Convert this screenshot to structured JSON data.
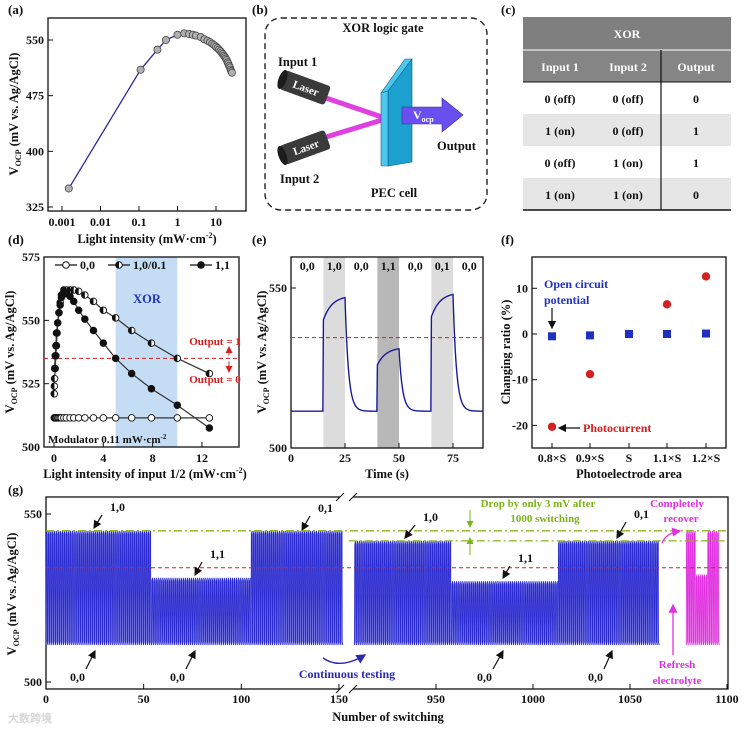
{
  "panels": {
    "a": "(a)",
    "b": "(b)",
    "c": "(c)",
    "d": "(d)",
    "e": "(e)",
    "f": "(f)",
    "g": "(g)"
  },
  "ylabel_vocp": {
    "main": "V",
    "sub": "OCP",
    "rest": " (mV vs. Ag/AgCl)"
  },
  "diagram": {
    "title": "XOR logic gate",
    "input1": "Input 1",
    "input2": "Input 2",
    "laser": "Laser",
    "output": "Output",
    "vocp_main": "V",
    "vocp_sub": "ocp",
    "cell": "PEC cell",
    "colors": {
      "beam": "#e040e0",
      "plate": "#1ba0d0",
      "plate_light": "#4cc8ee",
      "arrow": "#6a4ff0",
      "laser": "#3a3a3a"
    }
  },
  "truth_table": {
    "title": "XOR",
    "headers": [
      "Input 1",
      "Input 2",
      "Output"
    ],
    "rows": [
      [
        "0 (off)",
        "0 (off)",
        "0"
      ],
      [
        "1 (on)",
        "0 (off)",
        "1"
      ],
      [
        "0 (off)",
        "1 (on)",
        "1"
      ],
      [
        "1 (on)",
        "1 (on)",
        "0"
      ]
    ]
  },
  "chart_data": [
    {
      "id": "a",
      "type": "line",
      "xlabel": "Light intensity (mW·cm",
      "xlabel_sup": "-2",
      "xlabel_end": ")",
      "xscale": "log",
      "xlim": [
        0.001,
        30
      ],
      "ylim": [
        322,
        570
      ],
      "xticks": [
        "0.001",
        "0.01",
        "0.1",
        "1",
        "10"
      ],
      "yticks": [
        "325",
        "400",
        "475",
        "550"
      ],
      "x": [
        0.0015,
        0.11,
        0.3,
        0.5,
        1,
        1.5,
        2,
        2.5,
        3,
        4,
        5,
        6,
        7,
        8,
        9,
        10,
        11,
        12,
        13,
        14,
        15,
        16,
        17,
        18,
        19,
        20,
        21,
        22,
        23,
        24,
        25,
        26
      ],
      "y": [
        350,
        510,
        537,
        550,
        557,
        559,
        558,
        557,
        556,
        554,
        551,
        549,
        547,
        545,
        543,
        541,
        539,
        537,
        535,
        533,
        531,
        529,
        527,
        525,
        523,
        520,
        518,
        515,
        513,
        510,
        508,
        506
      ],
      "color": "#2a2aa0",
      "marker_color": "#b0b0b0"
    },
    {
      "id": "d",
      "type": "line",
      "xlabel": "Light intensity of input 1/2 (mW·cm",
      "xlabel_sup": "-2",
      "xlabel_end": ")",
      "xlim": [
        -0.8,
        15
      ],
      "ylim": [
        500,
        575
      ],
      "xticks": [
        "0",
        "4",
        "8",
        "12"
      ],
      "yticks": [
        "500",
        "525",
        "550",
        "575"
      ],
      "highlight": {
        "label": "XOR",
        "from": 5,
        "to": 10,
        "color": "#c5dcf5"
      },
      "threshold": 535,
      "threshold_labels": [
        "Output = 1",
        "Output = 0"
      ],
      "annotation": "Modulator 0.11 mW·cm",
      "annotation_sup": "-2",
      "series": [
        {
          "name": "0,0",
          "marker": "open",
          "x": [
            0.02,
            0.05,
            0.1,
            0.15,
            0.2,
            0.3,
            0.4,
            0.5,
            0.6,
            0.8,
            1,
            1.3,
            1.6,
            2,
            2.5,
            3.2,
            4,
            5,
            6.3,
            7.9,
            10,
            12.6
          ],
          "y": [
            511.5,
            511.5,
            511.5,
            511.5,
            511.5,
            511.5,
            511.5,
            511.5,
            511.5,
            511.5,
            511.5,
            511.5,
            511.5,
            511.5,
            511.5,
            511.5,
            511.5,
            511.5,
            511.5,
            511.5,
            511.5,
            511.5
          ]
        },
        {
          "name": "1,0/0.1",
          "marker": "half",
          "x": [
            0.02,
            0.03,
            0.05,
            0.1,
            0.15,
            0.2,
            0.25,
            0.3,
            0.4,
            0.5,
            0.6,
            0.8,
            1,
            1.3,
            1.6,
            2,
            2.5,
            3.2,
            4,
            5,
            6.3,
            7.9,
            10,
            12.6
          ],
          "y": [
            521,
            524,
            527,
            531,
            536,
            540,
            545,
            549,
            553,
            557,
            560,
            562,
            562,
            562,
            562,
            561.5,
            560,
            557.5,
            554,
            551,
            546,
            541,
            535,
            529
          ]
        },
        {
          "name": "1,1",
          "marker": "filled",
          "x": [
            0.05,
            0.1,
            0.15,
            0.2,
            0.3,
            0.4,
            0.5,
            0.6,
            0.8,
            1,
            1.3,
            1.6,
            2,
            2.5,
            3.2,
            4,
            5,
            6.3,
            7.9,
            10,
            12.6
          ],
          "y": [
            531,
            536,
            540,
            545,
            549,
            553,
            556,
            559,
            561,
            560.5,
            559.5,
            557.5,
            554,
            550.5,
            546,
            541,
            535,
            529,
            523,
            516.5,
            507.5
          ]
        }
      ]
    },
    {
      "id": "e",
      "type": "line",
      "xlabel": "Time (s)",
      "xlim": [
        0,
        90
      ],
      "ylim": [
        500,
        560
      ],
      "xticks": [
        "0",
        "25",
        "50",
        "75"
      ],
      "yticks": [
        "500",
        "550"
      ],
      "baseline": 511.5,
      "threshold": 534.5,
      "states": [
        {
          "label": "0,0",
          "from": 0,
          "to": 15,
          "shade": "none"
        },
        {
          "label": "1,0",
          "from": 15,
          "to": 25,
          "shade": "#dcdcdc"
        },
        {
          "label": "0,0",
          "from": 25,
          "to": 40,
          "shade": "none"
        },
        {
          "label": "1,1",
          "from": 40,
          "to": 50,
          "shade": "#b8b8b8"
        },
        {
          "label": "0,0",
          "from": 50,
          "to": 65,
          "shade": "none"
        },
        {
          "label": "0,1",
          "from": 65,
          "to": 75,
          "shade": "#dcdcdc"
        },
        {
          "label": "0,0",
          "from": 75,
          "to": 90,
          "shade": "none"
        }
      ],
      "pulses": [
        {
          "start": 15,
          "end": 25,
          "jump": 540,
          "final": 547
        },
        {
          "start": 40,
          "end": 50,
          "jump": 526,
          "final": 531
        },
        {
          "start": 65,
          "end": 75,
          "jump": 541,
          "final": 548
        }
      ],
      "color": "#1a1a9a"
    },
    {
      "id": "f",
      "type": "scatter",
      "xlabel": "Photoelectrode area",
      "ylabel": "Changing ratio (%)",
      "categories": [
        "0.8×S",
        "0.9×S",
        "S",
        "1.1×S",
        "1.2×S"
      ],
      "ylim": [
        -25,
        17
      ],
      "yticks": [
        "-20",
        "-10",
        "0",
        "10"
      ],
      "series": [
        {
          "name": "Open circuit potential",
          "label_lines": [
            "Open circuit",
            "potential"
          ],
          "marker": "square",
          "color": "#1f2fc0",
          "values": [
            -0.5,
            -0.3,
            0,
            0,
            0.1
          ]
        },
        {
          "name": "Photocurrent",
          "label_lines": [
            "Photocurrent"
          ],
          "marker": "circle",
          "color": "#d42020",
          "values": [
            -20.3,
            -8.8,
            0,
            6.5,
            12.6
          ]
        }
      ]
    },
    {
      "id": "g",
      "type": "line",
      "xlabel": "Number of switching",
      "xlim_left": [
        0,
        155
      ],
      "xlim_right": [
        905,
        1100
      ],
      "ylim": [
        497,
        555
      ],
      "xticks": [
        "0",
        "50",
        "100",
        "150",
        "950",
        "1000",
        "1050",
        "1100"
      ],
      "yticks": [
        "500",
        "550"
      ],
      "threshold": 534,
      "reference_lines": [
        {
          "value": 545,
          "from": 0,
          "to": 1100
        },
        {
          "value": 542,
          "from": 905,
          "to": 1100
        }
      ],
      "segments": [
        {
          "state": "1,0",
          "start": 0,
          "end": 54,
          "peak": 545,
          "base": 511,
          "color": "#2b2bd0"
        },
        {
          "state": "1,1",
          "start": 54,
          "end": 105,
          "peak": 531,
          "base": 511,
          "color": "#2b2bd0"
        },
        {
          "state": "0,1",
          "start": 105,
          "end": 152,
          "peak": 545,
          "base": 511,
          "color": "#2b2bd0"
        },
        {
          "state": "1,0",
          "start": 908,
          "end": 958,
          "peak": 542,
          "base": 511,
          "color": "#2b2bd0"
        },
        {
          "state": "1,1",
          "start": 958,
          "end": 1013,
          "peak": 530,
          "base": 511,
          "color": "#2b2bd0"
        },
        {
          "state": "0,1",
          "start": 1013,
          "end": 1065,
          "peak": 542,
          "base": 511,
          "color": "#2b2bd0"
        },
        {
          "state": "1,0",
          "start": 1079,
          "end": 1084,
          "peak": 545,
          "base": 511,
          "color": "#e030e0"
        },
        {
          "state": "1,1",
          "start": 1084,
          "end": 1090,
          "peak": 532,
          "base": 511,
          "color": "#e030e0"
        },
        {
          "state": "0,1",
          "start": 1090,
          "end": 1096,
          "peak": 545,
          "base": 511,
          "color": "#e030e0"
        }
      ],
      "annotations": {
        "state_labels": [
          "1,0",
          "0,0",
          "1,1",
          "0,0",
          "0,1",
          "1,0",
          "1,1",
          "0,0",
          "0,0",
          "0,1"
        ],
        "continuous": "Continuous testing",
        "drop": [
          "Drop by only 3 mV after",
          "1000 switching"
        ],
        "recover": [
          "Completely",
          "recover"
        ],
        "refresh": [
          "Refresh",
          "electrolyte"
        ]
      }
    }
  ],
  "watermark": "大数跨境"
}
